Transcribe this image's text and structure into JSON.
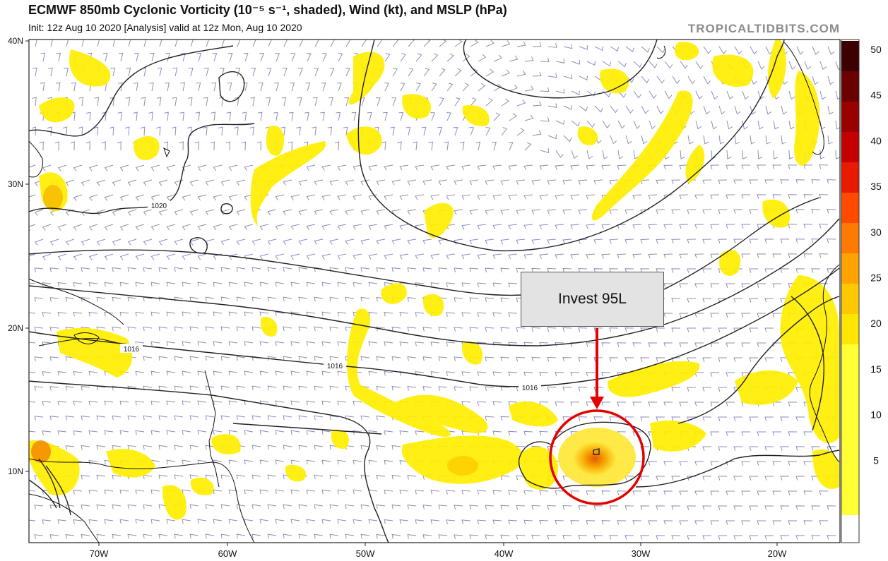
{
  "header": {
    "title": "ECMWF 850mb Cyclonic Vorticity (10⁻⁵ s⁻¹, shaded), Wind (kt), and MSLP (hPa)",
    "subtitle": "Init: 12z Aug 10 2020   [Analysis]   valid at 12z Mon, Aug 10 2020",
    "watermark": "TROPICALTIDBITS.COM"
  },
  "map": {
    "region": "Tropical Atlantic",
    "lat_labels": [
      "40N",
      "30N",
      "20N",
      "10N"
    ],
    "lon_labels": [
      "70W",
      "60W",
      "50W",
      "40W",
      "30W",
      "20W"
    ],
    "isobar_labels": [
      "1020",
      "1016",
      "1016",
      "1016"
    ],
    "annotation": {
      "text": "Invest 95L",
      "highlight_color": "#e60000"
    }
  },
  "colorbar": {
    "ticks": [
      "50",
      "45",
      "40",
      "35",
      "30",
      "25",
      "20",
      "15",
      "10",
      "5"
    ],
    "colors": [
      "#3d0000",
      "#6b0000",
      "#990000",
      "#c40000",
      "#e81a00",
      "#ff4a00",
      "#ff7a00",
      "#ffa300",
      "#ffc800",
      "#ffe600",
      "#ffff33"
    ]
  },
  "chart_data": {
    "type": "heatmap",
    "title": "ECMWF 850mb Cyclonic Vorticity (10⁻⁵ s⁻¹, shaded), Wind (kt), and MSLP (hPa)",
    "xlabel": "",
    "ylabel": "",
    "xlim": [
      "75W",
      "15W"
    ],
    "ylim": [
      "5N",
      "40N"
    ],
    "colorbar_range": [
      0,
      50
    ],
    "isobars_hPa": [
      1016,
      1020
    ],
    "highlight": {
      "label": "Invest 95L",
      "lat": 11,
      "lon": -33
    }
  }
}
